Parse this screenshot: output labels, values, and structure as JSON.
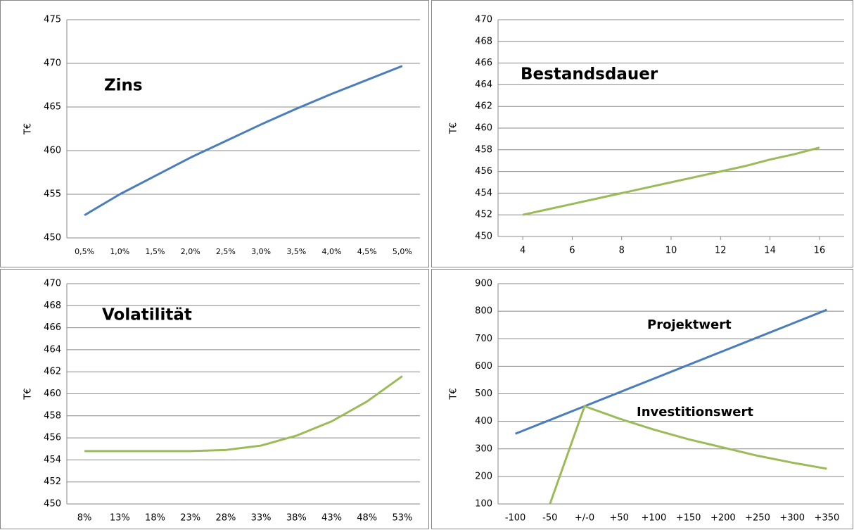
{
  "chart_data": [
    {
      "type": "line",
      "annotation": "Zins",
      "ylabel": "T€",
      "categories": [
        "0,5%",
        "1,0%",
        "1,5%",
        "2,0%",
        "2,5%",
        "3,0%",
        "3,5%",
        "4,0%",
        "4,5%",
        "5,0%"
      ],
      "series": [
        {
          "color": "#4a7ebb",
          "values": [
            452.6,
            455.0,
            457.1,
            459.2,
            461.1,
            463.0,
            464.8,
            466.5,
            468.1,
            469.7
          ]
        }
      ],
      "ylim": [
        450,
        475
      ],
      "yticks": [
        450,
        455,
        460,
        465,
        470,
        475
      ],
      "grid": true
    },
    {
      "type": "line",
      "annotation": "Bestandsdauer",
      "ylabel": "T€",
      "x": [
        4,
        5,
        6,
        7,
        8,
        9,
        10,
        11,
        12,
        13,
        14,
        15,
        16
      ],
      "series": [
        {
          "color": "#9bbb59",
          "values": [
            452.0,
            452.5,
            453.0,
            453.5,
            454.0,
            454.5,
            455.0,
            455.5,
            456.0,
            456.5,
            457.1,
            457.6,
            458.2
          ]
        }
      ],
      "xlim": [
        3,
        17
      ],
      "xticks": [
        4,
        6,
        8,
        10,
        12,
        14,
        16
      ],
      "ylim": [
        450,
        470
      ],
      "yticks": [
        450,
        452,
        454,
        456,
        458,
        460,
        462,
        464,
        466,
        468,
        470
      ],
      "grid": true
    },
    {
      "type": "line",
      "annotation": "Volatilität",
      "ylabel": "T€",
      "categories": [
        "8%",
        "13%",
        "18%",
        "23%",
        "28%",
        "33%",
        "38%",
        "43%",
        "48%",
        "53%"
      ],
      "series": [
        {
          "color": "#9bbb59",
          "values": [
            454.8,
            454.8,
            454.8,
            454.8,
            454.9,
            455.3,
            456.2,
            457.5,
            459.3,
            461.6
          ]
        }
      ],
      "ylim": [
        450,
        470
      ],
      "yticks": [
        450,
        452,
        454,
        456,
        458,
        460,
        462,
        464,
        466,
        468,
        470
      ],
      "grid": true
    },
    {
      "type": "line",
      "ylabel": "T€",
      "categories": [
        "-100",
        "-50",
        "+/-0",
        "+50",
        "+100",
        "+150",
        "+200",
        "+250",
        "+300",
        "+350"
      ],
      "series": [
        {
          "name": "Projektwert",
          "color": "#4a7ebb",
          "values": [
            355,
            405,
            455,
            505,
            555,
            605,
            655,
            705,
            755,
            805
          ]
        },
        {
          "name": "Investitionswert",
          "color": "#9bbb59",
          "values": [
            null,
            100,
            455,
            410,
            370,
            335,
            305,
            275,
            250,
            228
          ]
        }
      ],
      "ylim": [
        100,
        900
      ],
      "yticks": [
        100,
        200,
        300,
        400,
        500,
        600,
        700,
        800,
        900
      ],
      "grid": true
    }
  ]
}
